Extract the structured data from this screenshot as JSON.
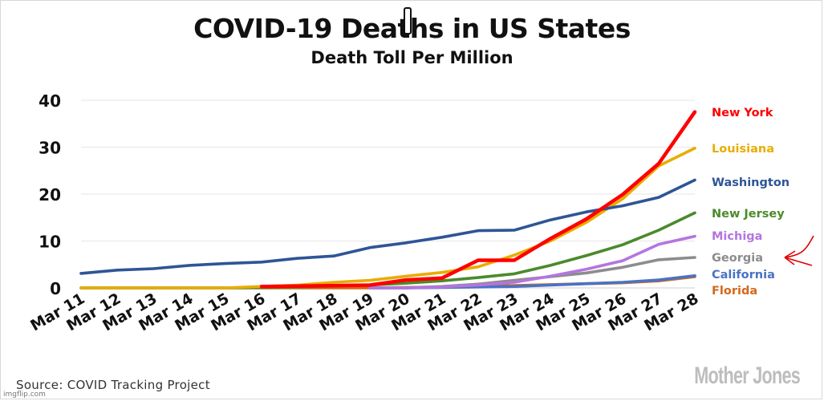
{
  "header": {
    "title": "COVID-19 Deaths in US States",
    "subtitle": "Death Toll Per Million"
  },
  "footer": {
    "source": "Source: COVID Tracking Project",
    "logo": "Mother Jones",
    "watermark": "imgflip.com"
  },
  "colors": {
    "new_york": "#ff0000",
    "louisiana": "#e8ad00",
    "washington": "#2e5596",
    "new_jersey": "#4a8a2c",
    "michigan": "#b475e0",
    "georgia": "#8c8c8c",
    "california": "#4a72c4",
    "florida": "#d4681b",
    "annotation_arrow": "#e00000"
  },
  "chart_data": {
    "type": "line",
    "title": "COVID-19 Deaths in US States",
    "subtitle": "Death Toll Per Million",
    "xlabel": "",
    "ylabel": "",
    "categories": [
      "Mar 11",
      "Mar 12",
      "Mar 13",
      "Mar 14",
      "Mar 15",
      "Mar 16",
      "Mar 17",
      "Mar 18",
      "Mar 19",
      "Mar 20",
      "Mar 21",
      "Mar 22",
      "Mar 23",
      "Mar 24",
      "Mar 25",
      "Mar 26",
      "Mar 27",
      "Mar 28"
    ],
    "ylim": [
      0,
      40
    ],
    "yticks": [
      0,
      10,
      20,
      30,
      40
    ],
    "grid": true,
    "legend": "right, labels at line ends",
    "series": [
      {
        "name": "Washington",
        "color": "#2e5596",
        "values": [
          3.1,
          3.8,
          4.1,
          4.8,
          5.2,
          5.5,
          6.3,
          6.8,
          8.6,
          9.6,
          10.8,
          12.2,
          12.3,
          14.5,
          16.2,
          17.5,
          19.3,
          23.0
        ]
      },
      {
        "name": "Louisiana",
        "color": "#e8ad00",
        "values": [
          0,
          0,
          0,
          0,
          0,
          0.3,
          0.6,
          1.2,
          1.6,
          2.5,
          3.3,
          4.5,
          7.0,
          10.0,
          14.0,
          19.0,
          26.0,
          29.8
        ]
      },
      {
        "name": "New Jersey",
        "color": "#4a8a2c",
        "values": [
          0,
          0,
          0,
          0,
          0,
          0.1,
          0.2,
          0.4,
          0.6,
          1.0,
          1.5,
          2.2,
          3.0,
          4.8,
          6.9,
          9.2,
          12.3,
          16.0
        ]
      },
      {
        "name": "Michiga",
        "color": "#b475e0",
        "values": [
          null,
          null,
          null,
          null,
          null,
          null,
          null,
          null,
          0,
          0,
          0.2,
          0.6,
          1.2,
          2.5,
          4.0,
          5.8,
          9.3,
          11.0
        ]
      },
      {
        "name": "Georgia",
        "color": "#8c8c8c",
        "values": [
          null,
          null,
          null,
          null,
          null,
          null,
          null,
          null,
          0,
          0,
          0.3,
          0.8,
          1.6,
          2.4,
          3.2,
          4.4,
          6.0,
          6.5
        ]
      },
      {
        "name": "California",
        "color": "#4a72c4",
        "values": [
          null,
          null,
          null,
          null,
          null,
          null,
          null,
          null,
          0,
          0,
          0.1,
          0.2,
          0.3,
          0.6,
          0.9,
          1.2,
          1.7,
          2.6
        ]
      },
      {
        "name": "Florida",
        "color": "#d4681b",
        "values": [
          0,
          0,
          0,
          0,
          0,
          0,
          0,
          0,
          0,
          0.1,
          0.2,
          0.3,
          0.5,
          0.7,
          0.9,
          1.1,
          1.5,
          2.4
        ]
      },
      {
        "name": "New York",
        "color": "#ff0000",
        "values": [
          null,
          null,
          null,
          null,
          null,
          0.3,
          0.4,
          0.5,
          0.6,
          1.7,
          2.1,
          5.9,
          5.9,
          10.5,
          14.7,
          19.9,
          26.5,
          37.5
        ]
      }
    ]
  }
}
